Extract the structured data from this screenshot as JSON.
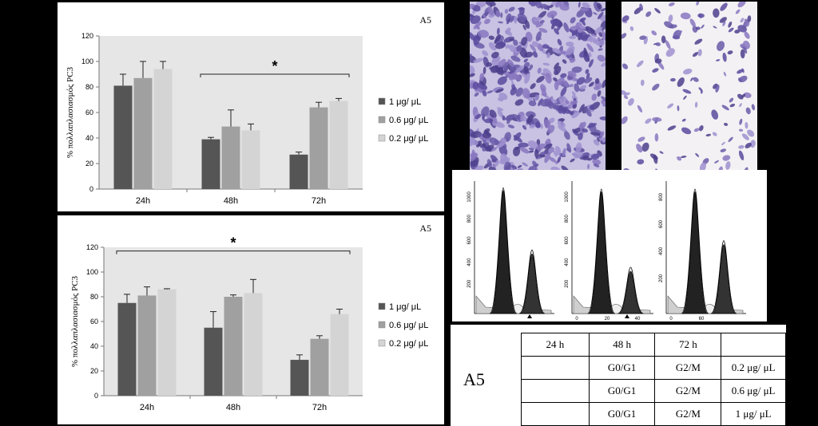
{
  "chart_data": [
    {
      "type": "bar",
      "corner_label": "A5",
      "ylabel": "% πολλαπλασιασμός PC3",
      "ylim": [
        0,
        120
      ],
      "yticks": [
        0,
        20,
        40,
        60,
        80,
        100,
        120
      ],
      "categories": [
        "24h",
        "48h",
        "72h"
      ],
      "series": [
        {
          "name": "1 μg/ μL",
          "color": "#555555",
          "values": [
            81,
            39,
            27
          ],
          "errors": [
            9,
            1.5,
            2
          ]
        },
        {
          "name": "0.6 μg/ μL",
          "color": "#a0a0a0",
          "values": [
            87,
            49,
            64
          ],
          "errors": [
            13,
            13,
            4
          ]
        },
        {
          "name": "0.2 μg/ μL",
          "color": "#d4d4d4",
          "values": [
            94,
            46,
            69
          ],
          "errors": [
            6,
            5,
            2
          ]
        }
      ],
      "significance": {
        "label": "*",
        "from_category": "48h",
        "to_category": "72h",
        "y": 90
      },
      "legend": "right",
      "grid": false
    },
    {
      "type": "bar",
      "corner_label": "A5",
      "ylabel": "% πολλαπλασιασμός PC3",
      "ylim": [
        0,
        120
      ],
      "yticks": [
        0,
        20,
        40,
        60,
        80,
        100,
        120
      ],
      "categories": [
        "24h",
        "48h",
        "72h"
      ],
      "series": [
        {
          "name": "1 μg/ μL",
          "color": "#555555",
          "values": [
            75,
            55,
            29
          ],
          "errors": [
            7,
            13,
            4
          ]
        },
        {
          "name": "0.6 μg/ μL",
          "color": "#a0a0a0",
          "values": [
            81,
            80,
            46
          ],
          "errors": [
            7,
            1.5,
            2.5
          ]
        },
        {
          "name": "0.2 μg/ μL",
          "color": "#d4d4d4",
          "values": [
            86,
            83,
            66
          ],
          "errors": [
            0.5,
            11,
            4
          ]
        }
      ],
      "significance": {
        "label": "*",
        "from_category": "24h",
        "to_category": "72h",
        "y": 117
      },
      "legend": "right",
      "grid": false
    }
  ],
  "histograms": {
    "panels": [
      {
        "yticks": [
          "1000",
          "800",
          "600",
          "400",
          "200"
        ],
        "xticks": []
      },
      {
        "yticks": [
          "1000",
          "800",
          "600",
          "400",
          "200"
        ],
        "xticks": [
          "0",
          "20",
          "40"
        ]
      },
      {
        "yticks": [
          "800",
          "600",
          "400",
          "200"
        ],
        "xticks": [
          "0",
          "60"
        ]
      }
    ]
  },
  "table": {
    "row_label": "A5",
    "header": [
      "24 h",
      "48 h",
      "72 h",
      ""
    ],
    "rows": [
      [
        "",
        "G0/G1",
        "G2/M",
        "0.2 μg/ μL"
      ],
      [
        "",
        "G0/G1",
        "G2/M",
        "0.6 μg/ μL"
      ],
      [
        "",
        "G0/G1",
        "G2/M",
        "1 μg/ μL"
      ]
    ]
  }
}
